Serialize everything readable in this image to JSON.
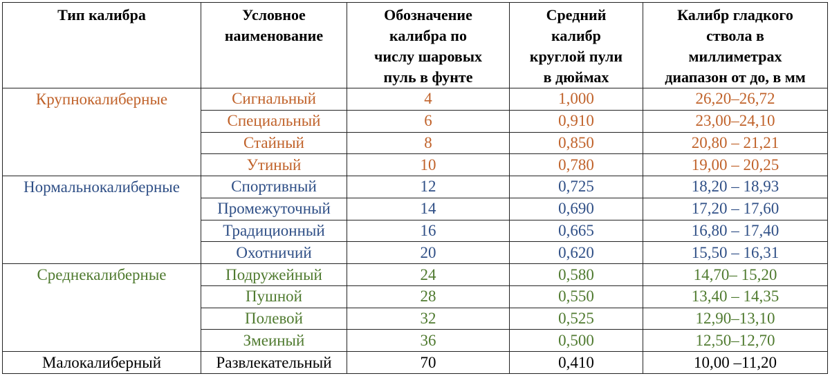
{
  "headers": [
    [
      "Тип калибра"
    ],
    [
      "Условное",
      "наименование"
    ],
    [
      "Обозначение",
      "калибра по",
      "числу шаровых",
      "пуль в фунте"
    ],
    [
      "Средний",
      "калибр",
      "круглой пули",
      "в дюймах"
    ],
    [
      "Калибр гладкого",
      "ствола в",
      "миллиметрах",
      "диапазон от до, в мм"
    ]
  ],
  "colors": {
    "large": "#c0622a",
    "normal": "#2f4f86",
    "medium": "#4f7a2f",
    "small": "#000000"
  },
  "rows": [
    {
      "type": "Крупнокалиберные",
      "name": "Сигнальный",
      "gauge": "4",
      "inches": "1,000",
      "mm": "26,20–26,72"
    },
    {
      "type": "",
      "name": "Специальный",
      "gauge": "6",
      "inches": "0,910",
      "mm": "23,00–24,10"
    },
    {
      "type": "",
      "name": "Стайный",
      "gauge": "8",
      "inches": "0,850",
      "mm": "20,80 – 21,21"
    },
    {
      "type": "",
      "name": "Утиный",
      "gauge": "10",
      "inches": "0,780",
      "mm": "19,00 – 20,25"
    },
    {
      "type": "Нормальнокалиберные",
      "name": "Спортивный",
      "gauge": "12",
      "inches": "0,725",
      "mm": "18,20 – 18,93"
    },
    {
      "type": "",
      "name": "Промежуточный",
      "gauge": "14",
      "inches": "0,690",
      "mm": "17,20 – 17,60"
    },
    {
      "type": "",
      "name": "Традиционный",
      "gauge": "16",
      "inches": "0,665",
      "mm": "16,80 – 17,40"
    },
    {
      "type": "",
      "name": "Охотничий",
      "gauge": "20",
      "inches": "0,620",
      "mm": "15,50 – 16,31"
    },
    {
      "type": "Среднекалиберные",
      "name": "Подружейный",
      "gauge": "24",
      "inches": "0,580",
      "mm": "14,70– 15,20"
    },
    {
      "type": "",
      "name": "Пушной",
      "gauge": "28",
      "inches": "0,550",
      "mm": "13,40 – 14,35"
    },
    {
      "type": "",
      "name": "Полевой",
      "gauge": "32",
      "inches": "0,525",
      "mm": "12,90–13,10"
    },
    {
      "type": "",
      "name": "Змеиный",
      "gauge": "36",
      "inches": "0,500",
      "mm": "12,50–12,70"
    },
    {
      "type": "Малокалиберный",
      "name": "Развлекательный",
      "gauge": "70",
      "inches": "0,410",
      "mm": "10,00 –11,20"
    }
  ]
}
